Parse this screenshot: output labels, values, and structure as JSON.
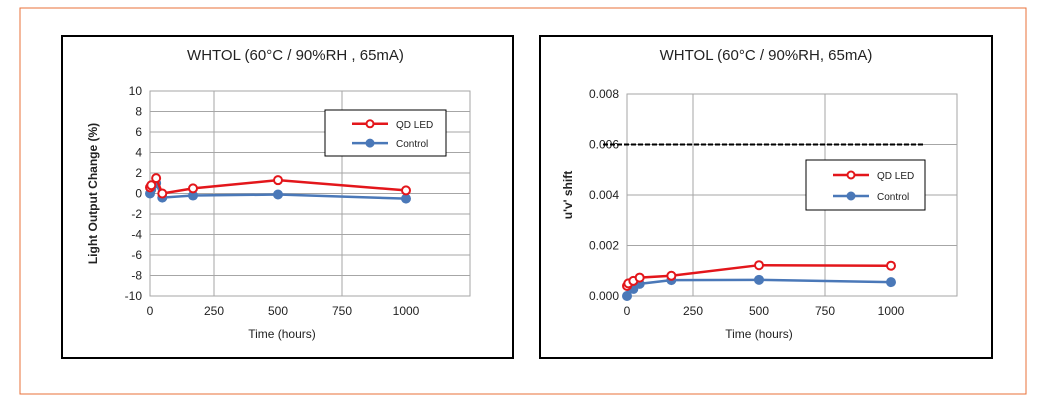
{
  "colors": {
    "frame": "#e8703a",
    "qd": "#e3161b",
    "control": "#4a78b8",
    "grid": "#a6a6a6"
  },
  "chart_data": [
    {
      "type": "line",
      "title": "WHTOL (60°C / 90%RH , 65mA)",
      "xlabel": "Time (hours)",
      "ylabel": "Light Output Change (%)",
      "xlim": [
        0,
        1250
      ],
      "ylim": [
        -10,
        10
      ],
      "xticks": [
        0,
        250,
        500,
        750,
        1000
      ],
      "yticks": [
        10,
        8,
        6,
        4,
        2,
        0,
        -2,
        -4,
        -6,
        -8,
        -10
      ],
      "ytick_labels": [
        "10",
        "8",
        "6",
        "4",
        "2",
        "0",
        "-2",
        "-4",
        "-6",
        "-8",
        "-10"
      ],
      "legend": "top-right",
      "series": [
        {
          "name": "QD LED",
          "x": [
            0,
            5,
            24,
            48,
            168,
            500,
            1000
          ],
          "y": [
            0.6,
            0.8,
            1.5,
            0.0,
            0.5,
            1.3,
            0.3
          ]
        },
        {
          "name": "Control",
          "x": [
            0,
            5,
            24,
            48,
            168,
            500,
            1000
          ],
          "y": [
            0.0,
            0.4,
            1.0,
            -0.4,
            -0.2,
            -0.1,
            -0.5
          ]
        }
      ]
    },
    {
      "type": "line",
      "title": "WHTOL (60°C / 90%RH, 65mA)",
      "xlabel": "Time (hours)",
      "ylabel": "u'v' shift",
      "xlim": [
        0,
        1250
      ],
      "ylim": [
        0,
        0.008
      ],
      "xticks": [
        0,
        250,
        500,
        750,
        1000
      ],
      "yticks": [
        0.008,
        0.006,
        0.004,
        0.002,
        0
      ],
      "ytick_labels": [
        "0.008",
        "0.006",
        "0.004",
        "0.002",
        "0.000"
      ],
      "legend": "center-right",
      "reference_line": {
        "y": 0.006,
        "style": "dashed"
      },
      "series": [
        {
          "name": "QD LED",
          "x": [
            0,
            5,
            24,
            48,
            168,
            500,
            1000
          ],
          "y": [
            0.0004,
            0.0005,
            0.0006,
            0.00073,
            0.0008,
            0.00122,
            0.0012
          ]
        },
        {
          "name": "Control",
          "x": [
            0,
            5,
            24,
            48,
            168,
            500,
            1000
          ],
          "y": [
            0.0,
            0.0004,
            0.00028,
            0.00048,
            0.00063,
            0.00064,
            0.00055
          ]
        }
      ]
    }
  ]
}
